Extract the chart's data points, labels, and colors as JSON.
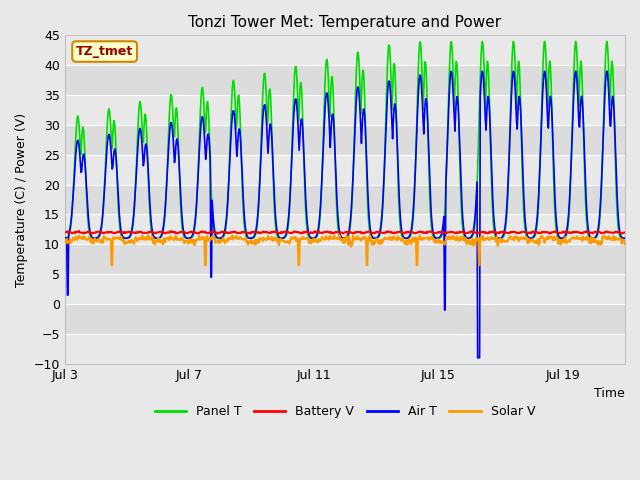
{
  "title": "Tonzi Tower Met: Temperature and Power",
  "xlabel": "Time",
  "ylabel": "Temperature (C) / Power (V)",
  "ylim": [
    -10,
    45
  ],
  "yticks": [
    -10,
    -5,
    0,
    5,
    10,
    15,
    20,
    25,
    30,
    35,
    40,
    45
  ],
  "xlim_days": [
    3,
    21
  ],
  "xtick_days": [
    3,
    7,
    11,
    15,
    19
  ],
  "xtick_labels": [
    "Jul 3",
    "Jul 7",
    "Jul 11",
    "Jul 15",
    "Jul 19"
  ],
  "panel_t_color": "#00dd00",
  "battery_v_color": "#ff0000",
  "air_t_color": "#0000ff",
  "solar_v_color": "#ff9900",
  "fig_bg_color": "#e8e8e8",
  "plot_bg_color": "#dcdcdc",
  "grid_color": "#ffffff",
  "annotation_text": "TZ_tmet",
  "annotation_bg": "#ffffcc",
  "annotation_border": "#cc8800",
  "legend_labels": [
    "Panel T",
    "Battery V",
    "Air T",
    "Solar V"
  ]
}
